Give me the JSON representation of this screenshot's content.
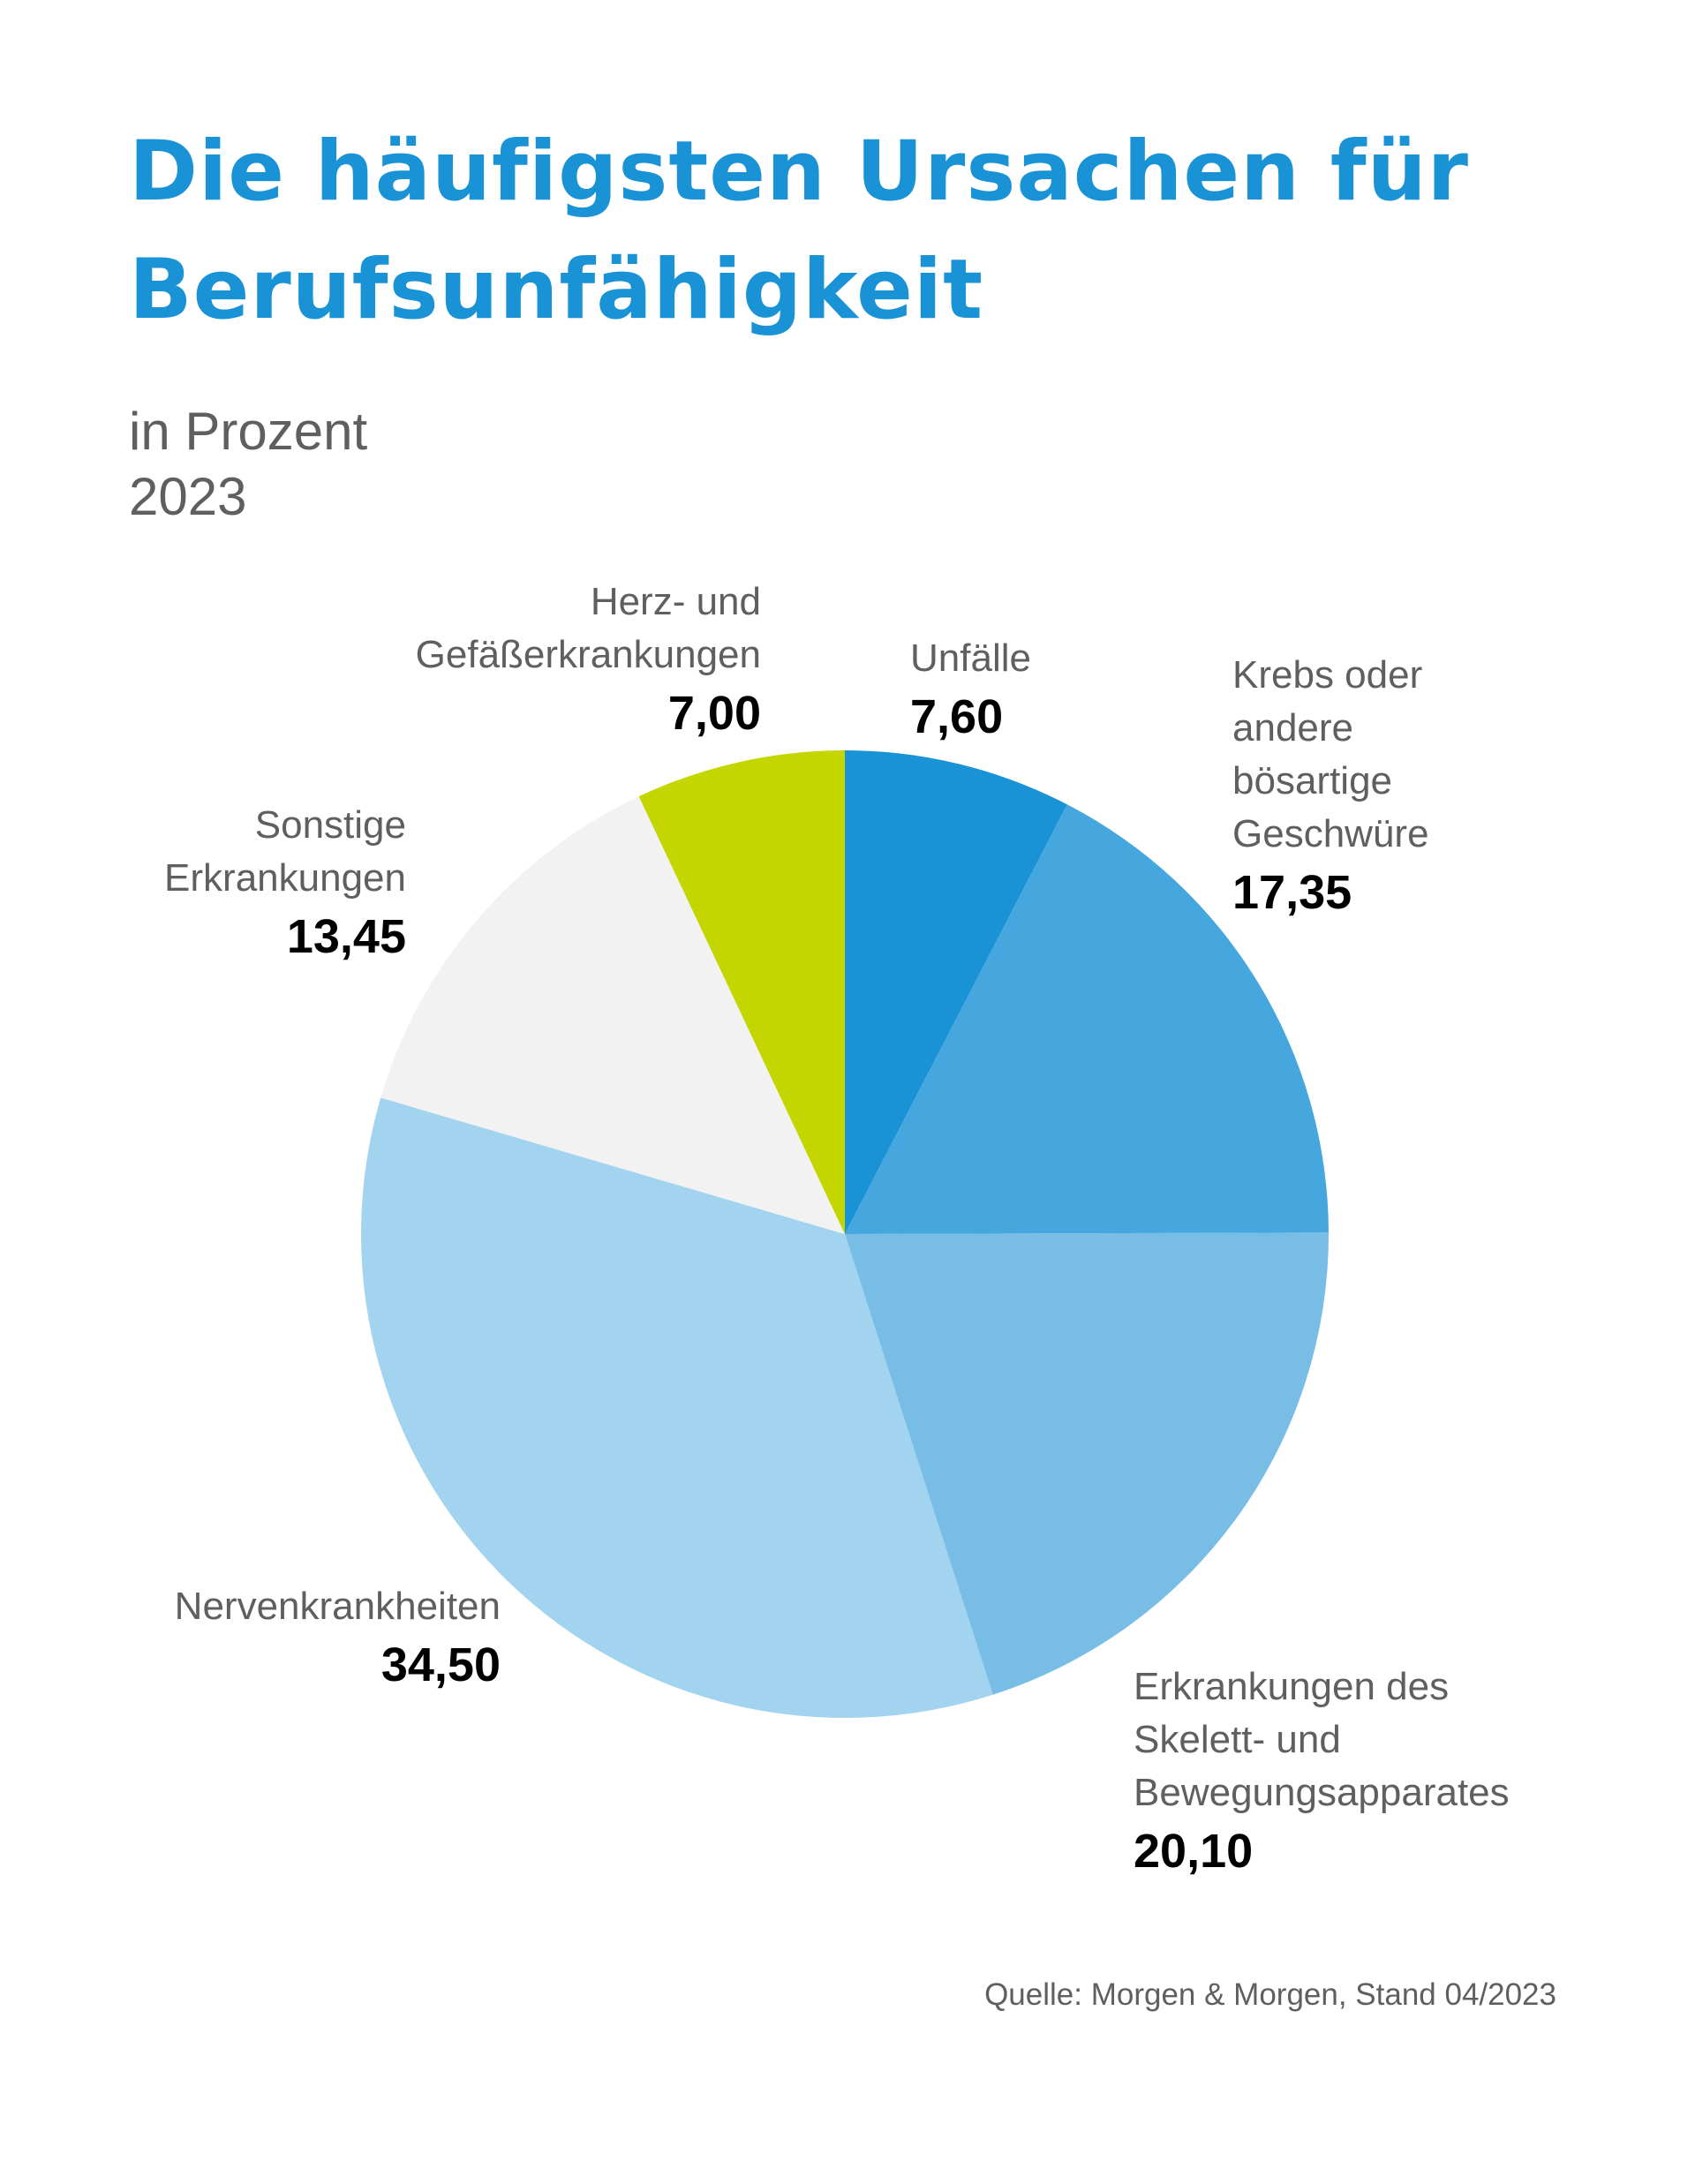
{
  "chart_data": {
    "type": "pie",
    "title": "Die häufigsten Ursachen für\nBerufsunfähigkeit",
    "subtitle": "in Prozent\n2023",
    "categories": [
      "Unfälle",
      "Krebs oder\nandere\nbösartige\nGeschwüre",
      "Erkrankungen des\nSkelett- und\nBewegungsapparates",
      "Nervenkrankheiten",
      "Sonstige\nErkrankungen",
      "Herz- und\nGefäßerkrankungen"
    ],
    "values": [
      7.6,
      17.35,
      20.1,
      34.5,
      13.45,
      7.0
    ],
    "value_labels": [
      "7,60",
      "17,35",
      "20,10",
      "34,50",
      "13,45",
      "7,00"
    ],
    "colors": [
      "#1a92d6",
      "#45a7de",
      "#77bde6",
      "#a2d3ef",
      "#f2f2f2",
      "#c3d600"
    ],
    "source": "Quelle: Morgen & Morgen, Stand 04/2023"
  }
}
